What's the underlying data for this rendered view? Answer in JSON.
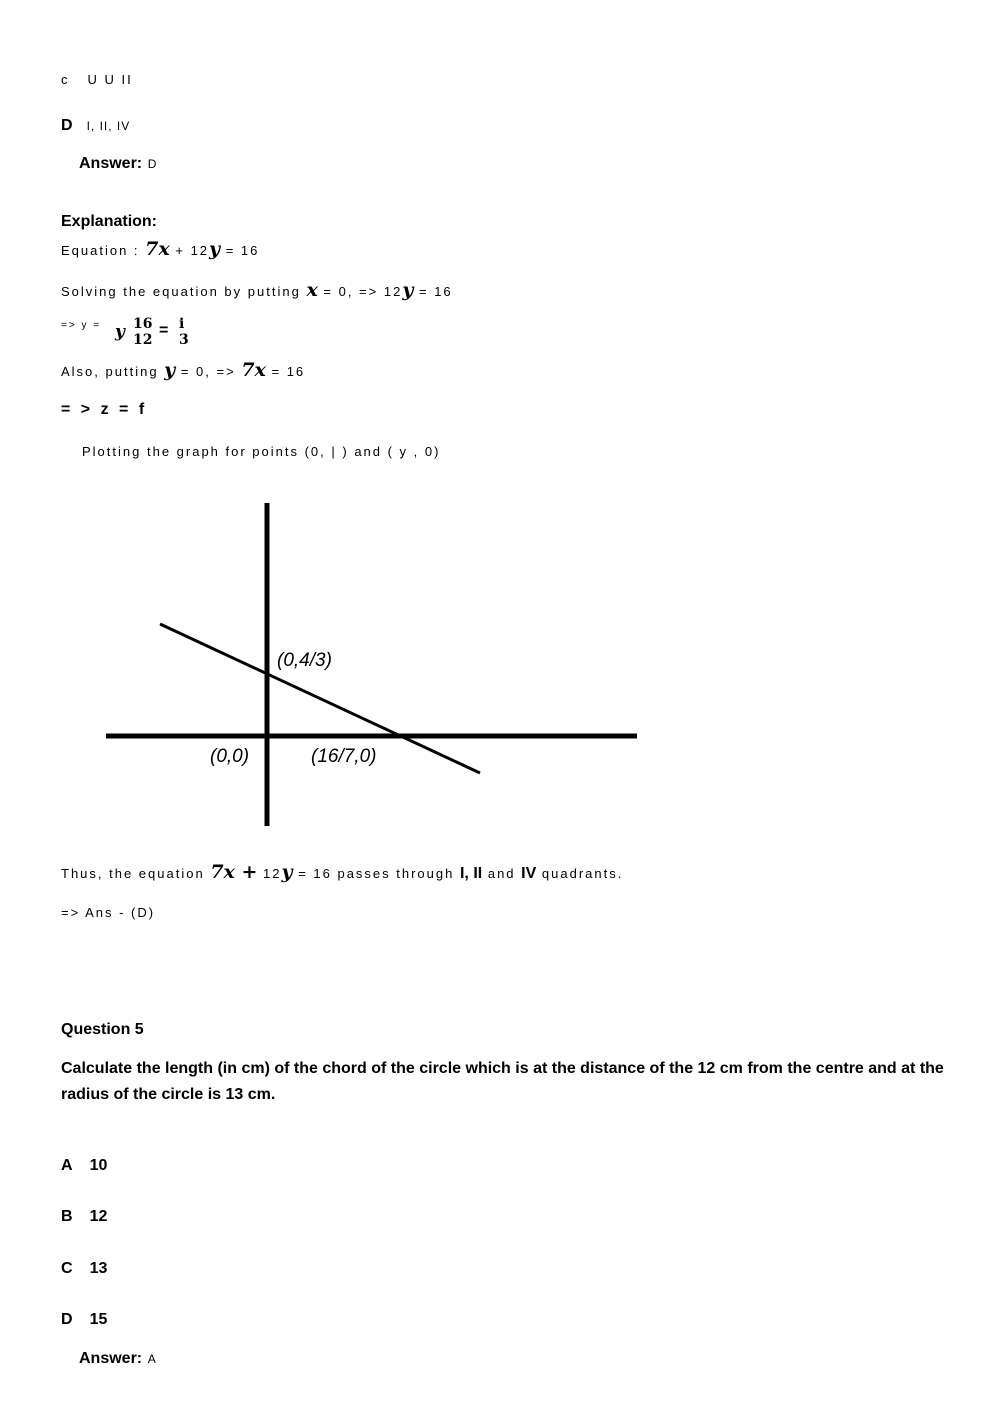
{
  "prev_question": {
    "option_c": {
      "letter": "c",
      "text": "U U II"
    },
    "option_d": {
      "letter": "D",
      "text": "I, II, IV"
    },
    "answer_label": "Answer:",
    "answer": "D",
    "explanation_label": "Explanation:",
    "lines": {
      "equation": {
        "prefix": "Equation :",
        "t1": "7x",
        "t2": "+ 12",
        "t3": "y",
        "t4": "= 16"
      },
      "solving": {
        "prefix": "Solving the equation by putting",
        "t1": "x",
        "t2": "= 0, => 12",
        "t3": "y",
        "t4": "= 16"
      },
      "frac": {
        "prefix": "=> y =",
        "y": "y",
        "num": "16",
        "den": "12",
        "eq": "=",
        "r_num": "i",
        "r_den": "3"
      },
      "also": {
        "prefix": "Also, putting",
        "t1": "y",
        "t2": "= 0, =>",
        "t3": "7x",
        "t4": "= 16"
      },
      "zf": "= > z = f",
      "plotting": "Plotting the graph for points (0, | ) and ( y , 0)",
      "thus": {
        "prefix": "Thus, the equation",
        "t1": "7x +",
        "t2": "12",
        "t3": "y",
        "t4": "= 16 passes through",
        "q1": "I, II",
        "t5": "and",
        "q2": "IV",
        "t6": "quadrants."
      },
      "ans": "=> Ans - (D)"
    },
    "graph": {
      "labels": {
        "y_intercept": "(0,4/3)",
        "origin": "(0,0)",
        "x_intercept": "(16/7,0)"
      }
    }
  },
  "question5": {
    "title": "Question 5",
    "text": "Calculate the length (in cm) of the chord of the circle which is at the distance of the 12 cm from the centre and at the radius of the circle is 13 cm.",
    "options": [
      {
        "letter": "A",
        "text": "10"
      },
      {
        "letter": "B",
        "text": "12"
      },
      {
        "letter": "C",
        "text": "13"
      },
      {
        "letter": "D",
        "text": "15"
      }
    ],
    "answer_label": "Answer:",
    "answer": "A"
  }
}
